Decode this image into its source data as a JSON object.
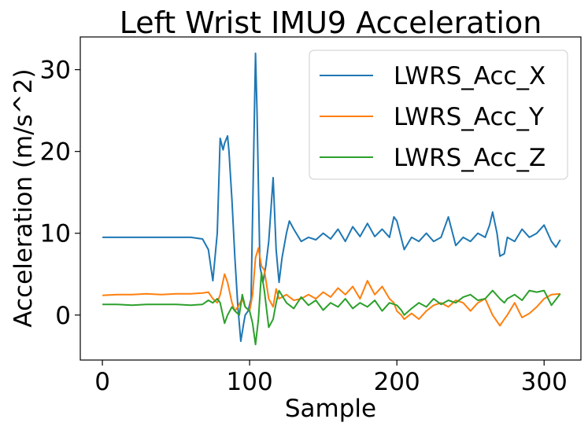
{
  "chart_data": {
    "type": "line",
    "title": "Left Wrist IMU9 Acceleration",
    "xlabel": "Sample",
    "ylabel": "Acceleration (m/s^2)",
    "xlim": [
      -15,
      325
    ],
    "ylim": [
      -5.5,
      34
    ],
    "xticks": [
      0,
      100,
      200,
      300
    ],
    "yticks": [
      0,
      10,
      20,
      30
    ],
    "grid": false,
    "legend_position": "upper-right",
    "series": [
      {
        "name": "LWRS_Acc_X",
        "color": "#1f77b4",
        "x": [
          0,
          10,
          20,
          30,
          40,
          50,
          60,
          68,
          72,
          75,
          78,
          80,
          82,
          83,
          85,
          86,
          88,
          90,
          92,
          94,
          96,
          97,
          99,
          101,
          103,
          104,
          105,
          107,
          109,
          111,
          113,
          116,
          118,
          120,
          122,
          125,
          127,
          130,
          135,
          140,
          145,
          150,
          155,
          160,
          165,
          170,
          175,
          180,
          185,
          190,
          195,
          198,
          200,
          205,
          210,
          215,
          220,
          225,
          230,
          235,
          240,
          245,
          250,
          255,
          260,
          263,
          265,
          268,
          270,
          273,
          275,
          280,
          285,
          290,
          295,
          300,
          305,
          308,
          311
        ],
        "y": [
          9.5,
          9.5,
          9.5,
          9.5,
          9.5,
          9.5,
          9.5,
          9.3,
          8.0,
          4.2,
          10.0,
          21.6,
          20.2,
          21.0,
          21.9,
          20.0,
          14.0,
          7.0,
          1.0,
          -3.2,
          -1.0,
          0.0,
          0.5,
          2.0,
          22.0,
          32.0,
          25.0,
          6.0,
          4.0,
          6.0,
          9.0,
          16.8,
          8.0,
          4.0,
          7.0,
          10.0,
          11.5,
          10.5,
          9.0,
          9.5,
          9.2,
          10.0,
          9.3,
          10.5,
          9.0,
          10.8,
          9.6,
          11.2,
          9.6,
          10.5,
          9.5,
          12.0,
          11.5,
          8.0,
          9.5,
          9.0,
          10.0,
          9.0,
          9.5,
          12.0,
          8.5,
          9.5,
          9.0,
          10.0,
          9.5,
          11.0,
          12.6,
          10.0,
          7.2,
          7.5,
          9.5,
          9.0,
          10.5,
          9.5,
          10.0,
          11.0,
          9.0,
          8.3,
          9.2
        ]
      },
      {
        "name": "LWRS_Acc_Y",
        "color": "#ff7f0e",
        "x": [
          0,
          10,
          20,
          30,
          40,
          50,
          60,
          68,
          72,
          75,
          78,
          80,
          83,
          85,
          88,
          90,
          92,
          95,
          97,
          100,
          102,
          104,
          106,
          108,
          110,
          113,
          116,
          118,
          120,
          125,
          130,
          135,
          140,
          145,
          150,
          155,
          160,
          165,
          170,
          175,
          180,
          185,
          190,
          195,
          198,
          200,
          203,
          205,
          210,
          215,
          220,
          225,
          230,
          235,
          240,
          245,
          250,
          255,
          260,
          265,
          270,
          273,
          275,
          280,
          285,
          290,
          295,
          300,
          305,
          311
        ],
        "y": [
          2.4,
          2.5,
          2.5,
          2.6,
          2.5,
          2.6,
          2.6,
          2.7,
          2.8,
          2.0,
          1.5,
          2.5,
          5.0,
          4.0,
          1.5,
          0.5,
          1.0,
          2.0,
          1.0,
          0.5,
          2.5,
          7.0,
          8.2,
          6.0,
          5.5,
          2.0,
          1.0,
          3.2,
          2.0,
          2.5,
          1.8,
          2.0,
          2.5,
          2.0,
          2.8,
          2.2,
          3.3,
          2.5,
          3.5,
          2.0,
          4.2,
          2.5,
          3.5,
          2.0,
          1.5,
          0.5,
          0.0,
          -0.5,
          0.2,
          -0.5,
          0.5,
          1.2,
          1.5,
          1.0,
          1.8,
          1.5,
          0.5,
          1.5,
          2.0,
          0.0,
          -1.3,
          -0.5,
          0.0,
          1.5,
          -0.3,
          0.2,
          1.0,
          2.0,
          2.5,
          2.6
        ]
      },
      {
        "name": "LWRS_Acc_Z",
        "color": "#2ca02c",
        "x": [
          0,
          10,
          20,
          30,
          40,
          50,
          60,
          68,
          72,
          75,
          78,
          80,
          83,
          85,
          88,
          90,
          93,
          95,
          97,
          100,
          102,
          104,
          106,
          108,
          110,
          113,
          116,
          118,
          120,
          125,
          130,
          135,
          140,
          145,
          150,
          155,
          160,
          165,
          170,
          175,
          180,
          185,
          190,
          195,
          200,
          203,
          205,
          210,
          215,
          220,
          225,
          230,
          235,
          240,
          245,
          250,
          255,
          260,
          265,
          270,
          273,
          275,
          280,
          285,
          290,
          295,
          300,
          305,
          311
        ],
        "y": [
          1.3,
          1.3,
          1.2,
          1.3,
          1.3,
          1.3,
          1.2,
          1.3,
          1.8,
          1.5,
          2.0,
          1.5,
          -1.0,
          0.0,
          1.0,
          0.5,
          0.0,
          2.5,
          1.0,
          0.5,
          -1.0,
          -3.6,
          -0.5,
          5.2,
          3.0,
          -1.5,
          -0.5,
          1.5,
          3.0,
          1.5,
          0.8,
          2.2,
          1.2,
          1.8,
          0.6,
          1.5,
          1.0,
          2.0,
          0.8,
          1.5,
          1.0,
          1.8,
          0.5,
          1.5,
          1.2,
          0.6,
          0.0,
          0.8,
          1.5,
          1.0,
          2.0,
          1.3,
          1.8,
          1.5,
          2.2,
          2.5,
          1.8,
          2.0,
          3.0,
          2.0,
          1.5,
          2.0,
          2.5,
          1.8,
          3.0,
          2.8,
          3.0,
          1.2,
          2.6
        ]
      }
    ]
  }
}
